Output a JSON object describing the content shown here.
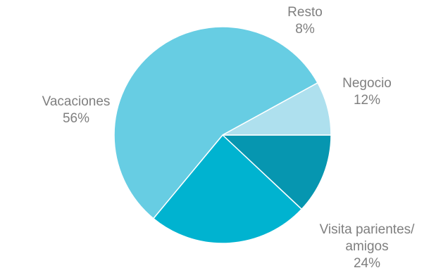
{
  "chart_data": {
    "type": "pie",
    "title": "",
    "start_angle_deg": 0,
    "direction": "clockwise",
    "slices": [
      {
        "label": [
          "Negocio"
        ],
        "value": 12,
        "percent_label": "12%",
        "color": "#0696b0"
      },
      {
        "label": [
          "Visita parientes/",
          "amigos"
        ],
        "value": 24,
        "percent_label": "24%",
        "color": "#00b3d0"
      },
      {
        "label": [
          "Vacaciones"
        ],
        "value": 56,
        "percent_label": "56%",
        "color": "#67cde3"
      },
      {
        "label": [
          "Resto"
        ],
        "value": 8,
        "percent_label": "8%",
        "color": "#aee0ee"
      }
    ]
  }
}
